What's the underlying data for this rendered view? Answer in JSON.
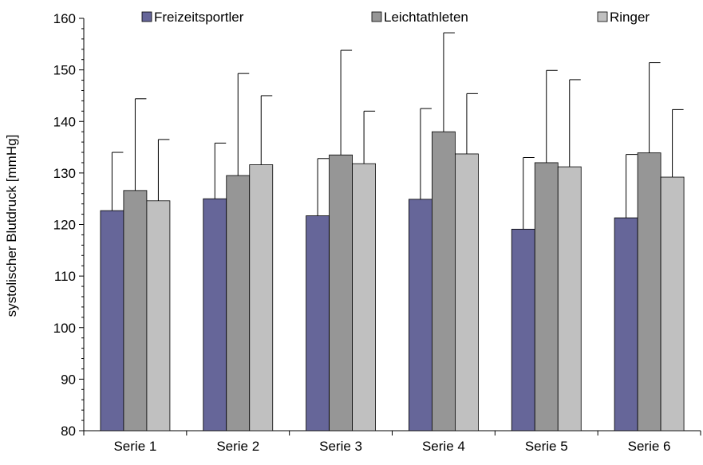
{
  "chart_data": {
    "type": "bar",
    "title": "",
    "xlabel": "",
    "ylabel": "systolischer Blutdruck [mmHg]",
    "ylim": [
      80,
      160
    ],
    "yticks": [
      80,
      90,
      100,
      110,
      120,
      130,
      140,
      150,
      160
    ],
    "minor_tick_step": 2,
    "grid": false,
    "legend_position": "top",
    "categories": [
      "Serie 1",
      "Serie 2",
      "Serie 3",
      "Serie 4",
      "Serie 5",
      "Serie 6"
    ],
    "series": [
      {
        "name": "Freizeitsportler",
        "color": "#666699",
        "values": [
          122.7,
          125.0,
          121.7,
          124.9,
          119.1,
          121.3
        ],
        "error_upper": [
          134.0,
          135.8,
          132.8,
          142.5,
          133.0,
          133.6
        ]
      },
      {
        "name": "Leichtathleten",
        "color": "#969696",
        "values": [
          126.6,
          129.5,
          133.5,
          138.0,
          132.0,
          133.9
        ],
        "error_upper": [
          144.4,
          149.3,
          153.8,
          157.2,
          149.9,
          151.4
        ]
      },
      {
        "name": "Ringer",
        "color": "#c0c0c0",
        "values": [
          124.6,
          131.6,
          131.8,
          133.7,
          131.2,
          129.2
        ],
        "error_upper": [
          136.5,
          145.0,
          142.0,
          145.4,
          148.1,
          142.3
        ]
      }
    ]
  }
}
